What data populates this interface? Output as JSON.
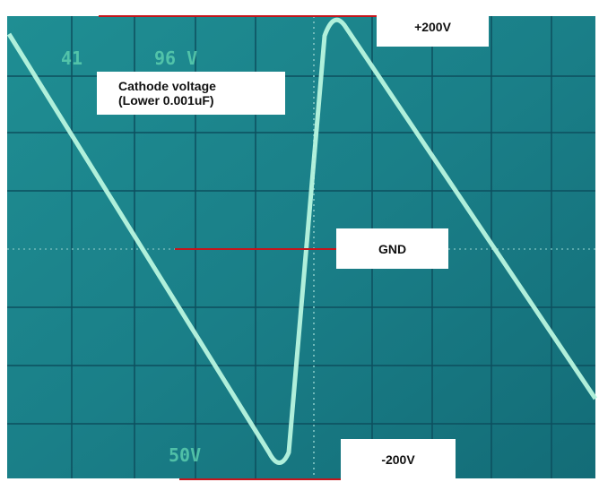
{
  "screen_readout": {
    "top_left": "41",
    "top_right": "96 V",
    "bottom": "50V"
  },
  "labels": {
    "positive_peak": "+200V",
    "ground": "GND",
    "negative_peak": "-200V",
    "caption": {
      "line1": "Cathode voltage",
      "line2": "(Lower 0.001uF)"
    }
  }
}
